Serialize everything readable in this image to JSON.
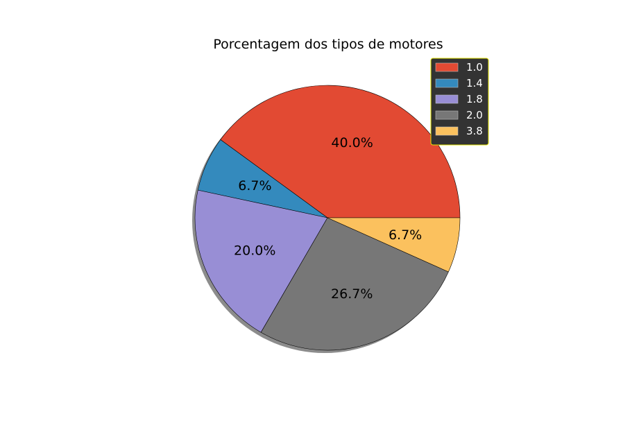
{
  "chart_data": {
    "type": "pie",
    "title": "Porcentagem dos tipos de motores",
    "categories": [
      "1.0",
      "1.4",
      "1.8",
      "2.0",
      "3.8"
    ],
    "values": [
      40.0,
      6.7,
      20.0,
      26.7,
      6.7
    ],
    "labels": [
      "40.0%",
      "6.7%",
      "20.0%",
      "26.7%",
      "6.7%"
    ],
    "colors": [
      "#E24A33",
      "#348ABD",
      "#988ED5",
      "#777777",
      "#FBC15E"
    ],
    "shadow": true,
    "start_angle_degrees": 0,
    "direction": "counterclockwise",
    "legend": {
      "placement": "upper-right",
      "background": "#333333",
      "border_color": "#e6e600",
      "text_color": "#ffffff"
    }
  }
}
